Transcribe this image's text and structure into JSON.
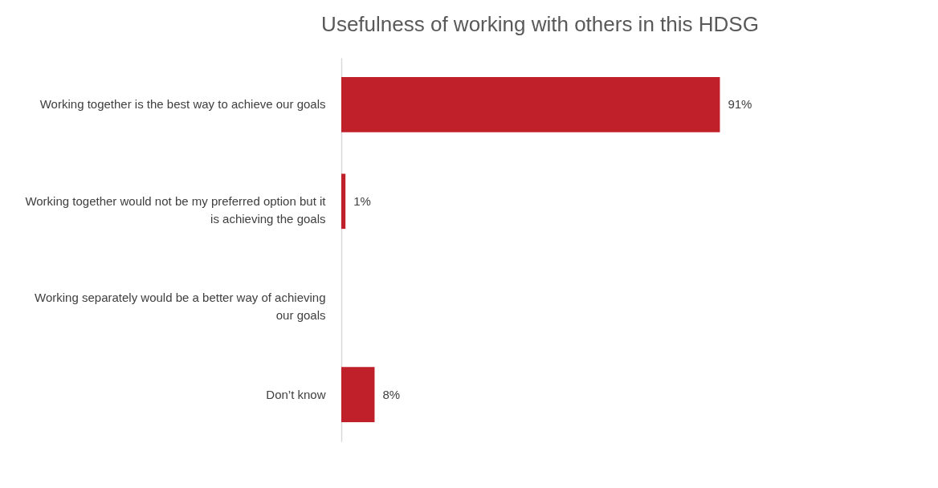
{
  "chart_data": {
    "type": "bar",
    "orientation": "horizontal",
    "title": "Usefulness of working with others in this HDSG",
    "categories": [
      "Working together is the best way to achieve our goals",
      "Working together would not be my preferred option but it is achieving the goals",
      "Working separately would be a better way of achieving our goals",
      "Don’t know"
    ],
    "values": [
      91,
      1,
      null,
      8
    ],
    "value_labels": [
      "91%",
      "1%",
      null,
      "8%"
    ],
    "color": "#c0202a"
  }
}
